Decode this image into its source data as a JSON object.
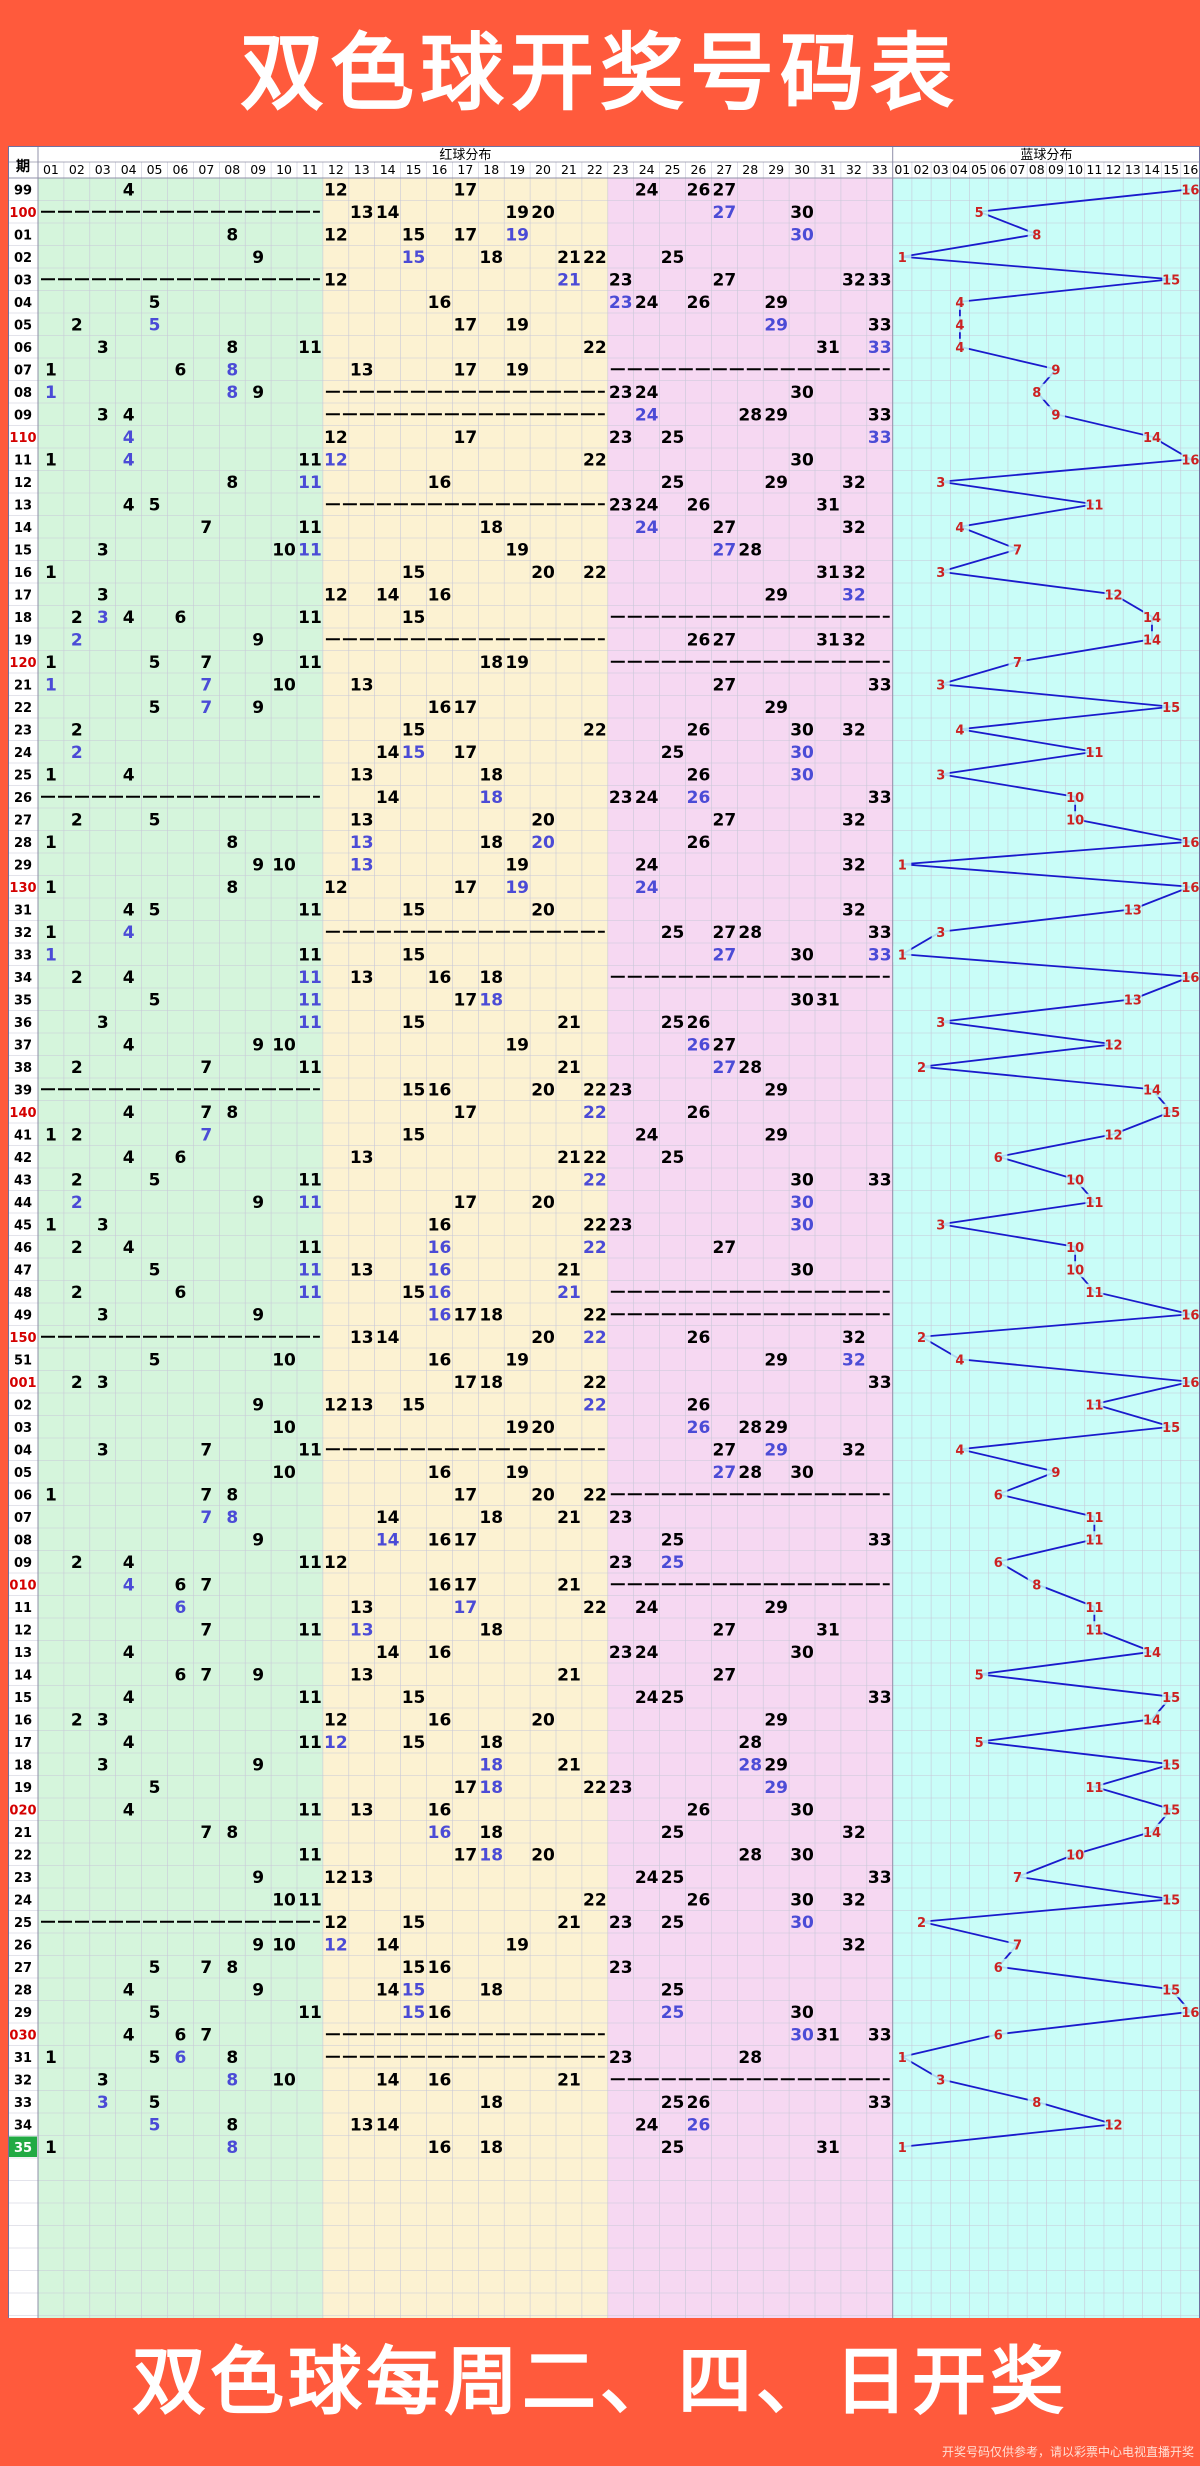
{
  "title": "双色球开奖号码表",
  "footer": "双色球每周二、四、日开奖",
  "disclaimer": "开奖号码仅供参考，请以彩票中心电视直播开奖",
  "chart_data": {
    "type": "table",
    "header": {
      "period": "期",
      "red_section": "红球分布",
      "blue_section": "蓝球分布"
    },
    "red_numbers": [
      "01",
      "02",
      "03",
      "04",
      "05",
      "06",
      "07",
      "08",
      "09",
      "10",
      "11",
      "12",
      "13",
      "14",
      "15",
      "16",
      "17",
      "18",
      "19",
      "20",
      "21",
      "22",
      "23",
      "24",
      "25",
      "26",
      "27",
      "28",
      "29",
      "30",
      "31",
      "32",
      "33"
    ],
    "blue_numbers": [
      "01",
      "02",
      "03",
      "04",
      "05",
      "06",
      "07",
      "08",
      "09",
      "10",
      "11",
      "12",
      "13",
      "14",
      "15",
      "16"
    ],
    "colors": {
      "zone1": "#d5f5dc",
      "zone2": "#fcf2d2",
      "zone3": "#f6d8f2",
      "blue_zone": "#c9fdf8",
      "normal_number": "#000000",
      "repeat_number": "#4b4bd6",
      "blue_number": "#cc2222",
      "highlight_period": "#d40000",
      "latest_period_bg": "#22aa44"
    },
    "rows": [
      {
        "p": "99",
        "red": [
          4,
          12,
          17,
          24,
          26,
          27
        ],
        "blue": 16
      },
      {
        "p": "100",
        "red": [
          13,
          14,
          19,
          20,
          27,
          30
        ],
        "blue": 5
      },
      {
        "p": "01",
        "red": [
          8,
          12,
          15,
          17,
          19,
          30
        ],
        "blue": 8
      },
      {
        "p": "02",
        "red": [
          9,
          15,
          18,
          21,
          22,
          25
        ],
        "blue": 1
      },
      {
        "p": "03",
        "red": [
          12,
          21,
          23,
          27,
          32,
          33
        ],
        "blue": 15
      },
      {
        "p": "04",
        "red": [
          5,
          16,
          23,
          24,
          26,
          29
        ],
        "blue": 4
      },
      {
        "p": "05",
        "red": [
          2,
          5,
          17,
          19,
          29,
          33
        ],
        "blue": 4
      },
      {
        "p": "06",
        "red": [
          3,
          8,
          11,
          22,
          31,
          33
        ],
        "blue": 4
      },
      {
        "p": "07",
        "red": [
          1,
          6,
          8,
          13,
          17,
          19
        ],
        "blue": 9
      },
      {
        "p": "08",
        "red": [
          1,
          8,
          9,
          23,
          24,
          30
        ],
        "blue": 8
      },
      {
        "p": "09",
        "red": [
          3,
          4,
          24,
          28,
          29,
          33
        ],
        "blue": 9
      },
      {
        "p": "110",
        "red": [
          4,
          12,
          17,
          23,
          25,
          33
        ],
        "blue": 14
      },
      {
        "p": "11",
        "red": [
          1,
          4,
          11,
          12,
          22,
          30
        ],
        "blue": 16
      },
      {
        "p": "12",
        "red": [
          8,
          11,
          16,
          25,
          29,
          32
        ],
        "blue": 3
      },
      {
        "p": "13",
        "red": [
          4,
          5,
          23,
          24,
          26,
          31
        ],
        "blue": 11
      },
      {
        "p": "14",
        "red": [
          7,
          11,
          18,
          24,
          27,
          32
        ],
        "blue": 4
      },
      {
        "p": "15",
        "red": [
          3,
          10,
          11,
          19,
          27,
          28
        ],
        "blue": 7
      },
      {
        "p": "16",
        "red": [
          1,
          15,
          20,
          22,
          31,
          32
        ],
        "blue": 3
      },
      {
        "p": "17",
        "red": [
          3,
          12,
          14,
          16,
          29,
          32
        ],
        "blue": 12
      },
      {
        "p": "18",
        "red": [
          2,
          3,
          4,
          6,
          11,
          15
        ],
        "blue": 14
      },
      {
        "p": "19",
        "red": [
          2,
          9,
          26,
          27,
          31,
          32
        ],
        "blue": 14
      },
      {
        "p": "120",
        "red": [
          1,
          5,
          7,
          11,
          18,
          19
        ],
        "blue": 7
      },
      {
        "p": "21",
        "red": [
          1,
          7,
          10,
          13,
          27,
          33
        ],
        "blue": 3
      },
      {
        "p": "22",
        "red": [
          5,
          7,
          9,
          16,
          17,
          29
        ],
        "blue": 15
      },
      {
        "p": "23",
        "red": [
          2,
          15,
          22,
          26,
          30,
          32
        ],
        "blue": 4
      },
      {
        "p": "24",
        "red": [
          2,
          14,
          15,
          17,
          25,
          30
        ],
        "blue": 11
      },
      {
        "p": "25",
        "red": [
          1,
          4,
          13,
          18,
          26,
          30
        ],
        "blue": 3
      },
      {
        "p": "26",
        "red": [
          14,
          18,
          23,
          24,
          26,
          33
        ],
        "blue": 10
      },
      {
        "p": "27",
        "red": [
          2,
          5,
          13,
          20,
          27,
          32
        ],
        "blue": 10
      },
      {
        "p": "28",
        "red": [
          1,
          8,
          13,
          18,
          20,
          26
        ],
        "blue": 16
      },
      {
        "p": "29",
        "red": [
          9,
          10,
          13,
          19,
          24,
          32
        ],
        "blue": 1
      },
      {
        "p": "130",
        "red": [
          1,
          8,
          12,
          17,
          19,
          24
        ],
        "blue": 16
      },
      {
        "p": "31",
        "red": [
          4,
          5,
          11,
          15,
          20,
          32
        ],
        "blue": 13
      },
      {
        "p": "32",
        "red": [
          1,
          4,
          25,
          27,
          28,
          33
        ],
        "blue": 3
      },
      {
        "p": "33",
        "red": [
          1,
          11,
          15,
          27,
          30,
          33
        ],
        "blue": 1
      },
      {
        "p": "34",
        "red": [
          2,
          4,
          11,
          13,
          16,
          18
        ],
        "blue": 16
      },
      {
        "p": "35",
        "red": [
          5,
          11,
          17,
          18,
          30,
          31
        ],
        "blue": 13
      },
      {
        "p": "36",
        "red": [
          3,
          11,
          15,
          21,
          25,
          26
        ],
        "blue": 3
      },
      {
        "p": "37",
        "red": [
          4,
          9,
          10,
          19,
          26,
          27
        ],
        "blue": 12
      },
      {
        "p": "38",
        "red": [
          2,
          7,
          11,
          21,
          27,
          28
        ],
        "blue": 2
      },
      {
        "p": "39",
        "red": [
          15,
          16,
          20,
          22,
          23,
          29
        ],
        "blue": 14
      },
      {
        "p": "140",
        "red": [
          4,
          7,
          8,
          17,
          22,
          26
        ],
        "blue": 15
      },
      {
        "p": "41",
        "red": [
          1,
          2,
          7,
          15,
          24,
          29
        ],
        "blue": 12
      },
      {
        "p": "42",
        "red": [
          4,
          6,
          13,
          21,
          22,
          25
        ],
        "blue": 6
      },
      {
        "p": "43",
        "red": [
          2,
          5,
          11,
          22,
          30,
          33
        ],
        "blue": 10
      },
      {
        "p": "44",
        "red": [
          2,
          9,
          11,
          17,
          20,
          30
        ],
        "blue": 11
      },
      {
        "p": "45",
        "red": [
          1,
          3,
          16,
          22,
          23,
          30
        ],
        "blue": 3
      },
      {
        "p": "46",
        "red": [
          2,
          4,
          11,
          16,
          22,
          27
        ],
        "blue": 10
      },
      {
        "p": "47",
        "red": [
          5,
          11,
          13,
          16,
          21,
          30
        ],
        "blue": 10
      },
      {
        "p": "48",
        "red": [
          2,
          6,
          11,
          15,
          16,
          21
        ],
        "blue": 11
      },
      {
        "p": "49",
        "red": [
          3,
          9,
          16,
          17,
          18,
          22
        ],
        "blue": 16
      },
      {
        "p": "150",
        "red": [
          13,
          14,
          20,
          22,
          26,
          32
        ],
        "blue": 2
      },
      {
        "p": "51",
        "red": [
          5,
          10,
          16,
          19,
          29,
          32
        ],
        "blue": 4
      },
      {
        "p": "001",
        "red": [
          2,
          3,
          17,
          18,
          22,
          33
        ],
        "blue": 16
      },
      {
        "p": "02",
        "red": [
          9,
          12,
          13,
          15,
          22,
          26
        ],
        "blue": 11
      },
      {
        "p": "03",
        "red": [
          10,
          19,
          20,
          26,
          28,
          29
        ],
        "blue": 15
      },
      {
        "p": "04",
        "red": [
          3,
          7,
          11,
          27,
          29,
          32
        ],
        "blue": 4
      },
      {
        "p": "05",
        "red": [
          10,
          16,
          19,
          27,
          28,
          30
        ],
        "blue": 9
      },
      {
        "p": "06",
        "red": [
          1,
          7,
          8,
          17,
          20,
          22
        ],
        "blue": 6
      },
      {
        "p": "07",
        "red": [
          7,
          8,
          14,
          18,
          21,
          23
        ],
        "blue": 11
      },
      {
        "p": "08",
        "red": [
          9,
          14,
          16,
          17,
          25,
          33
        ],
        "blue": 11
      },
      {
        "p": "09",
        "red": [
          2,
          4,
          11,
          12,
          23,
          25
        ],
        "blue": 6
      },
      {
        "p": "010",
        "red": [
          4,
          6,
          7,
          16,
          17,
          21
        ],
        "blue": 8
      },
      {
        "p": "11",
        "red": [
          6,
          13,
          17,
          22,
          24,
          29
        ],
        "blue": 11
      },
      {
        "p": "12",
        "red": [
          7,
          11,
          13,
          18,
          27,
          31
        ],
        "blue": 11
      },
      {
        "p": "13",
        "red": [
          4,
          14,
          16,
          23,
          24,
          30
        ],
        "blue": 14
      },
      {
        "p": "14",
        "red": [
          6,
          7,
          9,
          13,
          21,
          27
        ],
        "blue": 5
      },
      {
        "p": "15",
        "red": [
          4,
          11,
          15,
          24,
          25,
          33
        ],
        "blue": 15
      },
      {
        "p": "16",
        "red": [
          2,
          3,
          12,
          16,
          20,
          29
        ],
        "blue": 14
      },
      {
        "p": "17",
        "red": [
          4,
          11,
          12,
          15,
          18,
          28
        ],
        "blue": 5
      },
      {
        "p": "18",
        "red": [
          3,
          9,
          18,
          21,
          28,
          29
        ],
        "blue": 15
      },
      {
        "p": "19",
        "red": [
          5,
          17,
          18,
          22,
          23,
          29
        ],
        "blue": 11
      },
      {
        "p": "020",
        "red": [
          4,
          11,
          13,
          16,
          26,
          30
        ],
        "blue": 15
      },
      {
        "p": "21",
        "red": [
          7,
          8,
          16,
          18,
          25,
          32
        ],
        "blue": 14
      },
      {
        "p": "22",
        "red": [
          11,
          17,
          18,
          20,
          28,
          30
        ],
        "blue": 10
      },
      {
        "p": "23",
        "red": [
          9,
          12,
          13,
          24,
          25,
          33
        ],
        "blue": 7
      },
      {
        "p": "24",
        "red": [
          10,
          11,
          22,
          26,
          30,
          32
        ],
        "blue": 15
      },
      {
        "p": "25",
        "red": [
          12,
          15,
          21,
          23,
          25,
          30
        ],
        "blue": 2
      },
      {
        "p": "26",
        "red": [
          9,
          10,
          12,
          14,
          19,
          32
        ],
        "blue": 7
      },
      {
        "p": "27",
        "red": [
          5,
          7,
          8,
          15,
          16,
          23
        ],
        "blue": 6
      },
      {
        "p": "28",
        "red": [
          4,
          9,
          14,
          15,
          18,
          25
        ],
        "blue": 15
      },
      {
        "p": "29",
        "red": [
          5,
          11,
          15,
          16,
          25,
          30
        ],
        "blue": 16
      },
      {
        "p": "030",
        "red": [
          4,
          6,
          7,
          30,
          31,
          33
        ],
        "blue": 6
      },
      {
        "p": "31",
        "red": [
          1,
          5,
          6,
          8,
          23,
          28
        ],
        "blue": 1
      },
      {
        "p": "32",
        "red": [
          3,
          8,
          10,
          14,
          16,
          21
        ],
        "blue": 3
      },
      {
        "p": "33",
        "red": [
          3,
          5,
          18,
          25,
          26,
          33
        ],
        "blue": 8
      },
      {
        "p": "34",
        "red": [
          5,
          8,
          13,
          14,
          24,
          26
        ],
        "blue": 12
      },
      {
        "p": "35",
        "red": [
          1,
          8,
          16,
          18,
          25,
          31
        ],
        "blue": 1
      }
    ]
  }
}
